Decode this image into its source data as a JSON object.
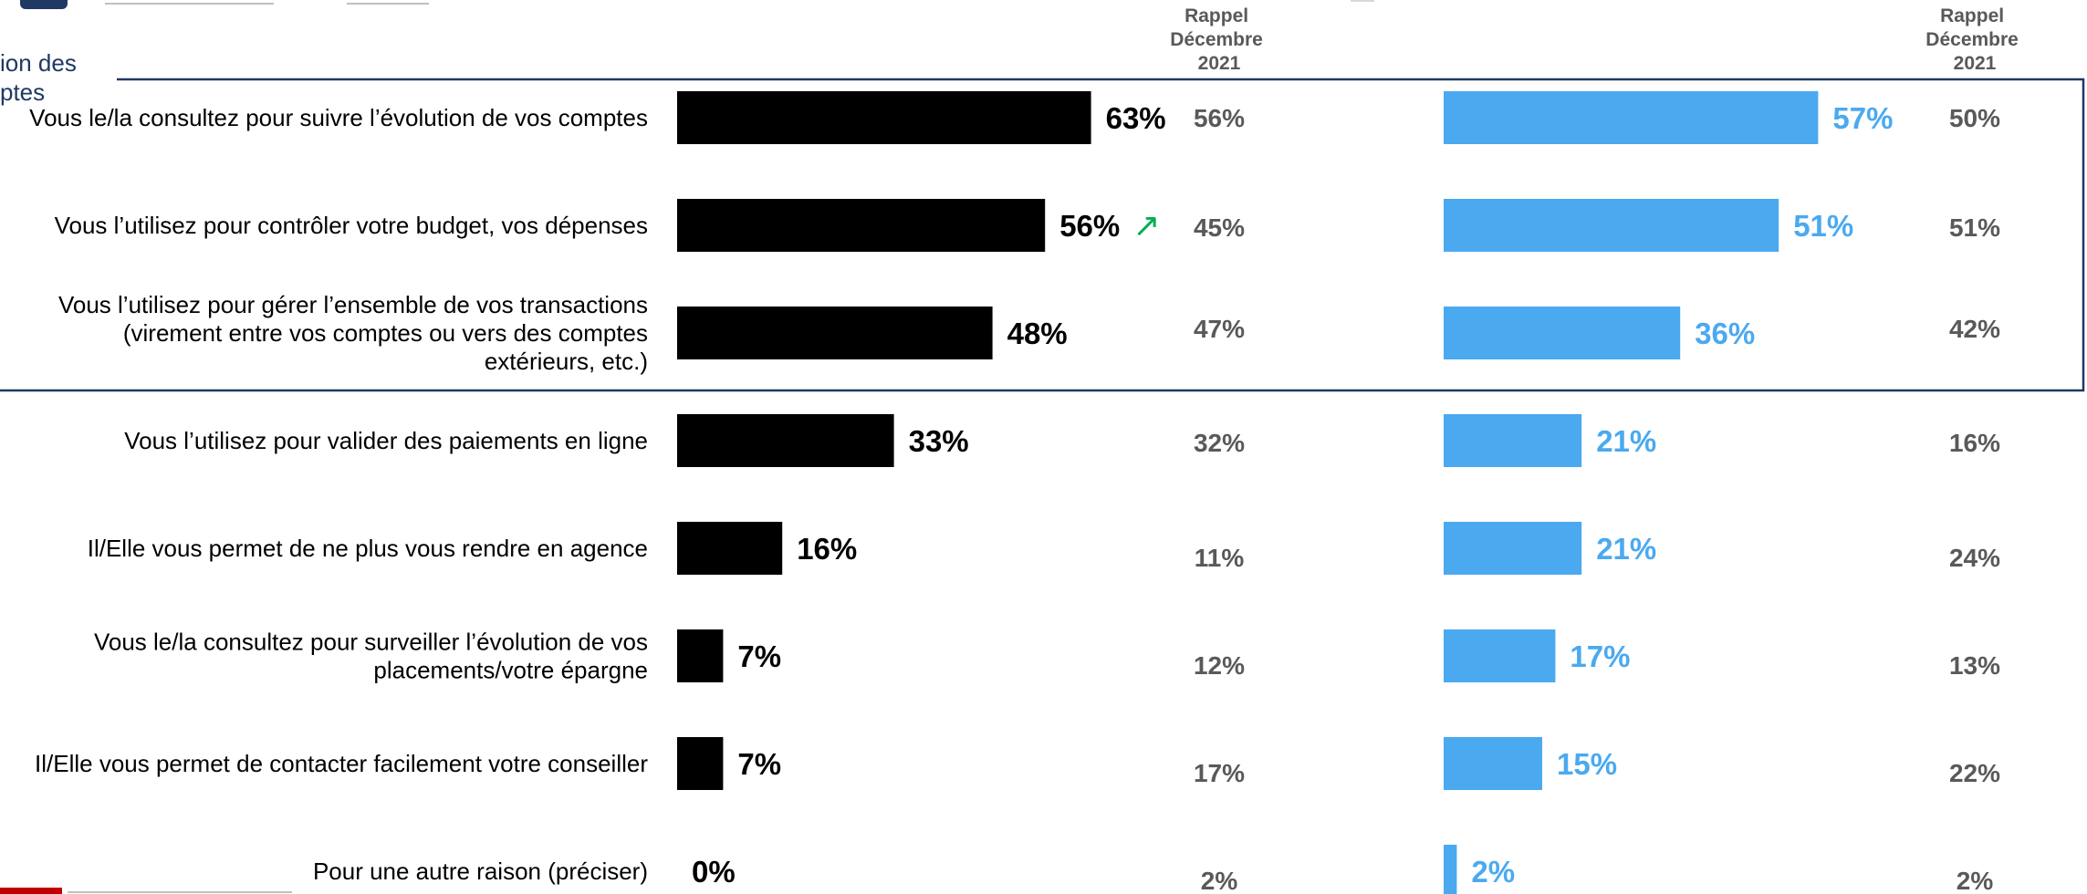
{
  "header": {
    "rappel_left": [
      "Rappel",
      "Décembre",
      "2021"
    ],
    "rappel_right": [
      "Rappel",
      "Décembre",
      "2021"
    ],
    "group_label": [
      "ion des",
      "ptes"
    ]
  },
  "colors": {
    "series_left": "#000000",
    "series_right": "#4BA9F0",
    "rappel_text": "#595959",
    "highlight_box": "#1F3864",
    "up_arrow": "#00B050"
  },
  "chart_data": {
    "type": "bar",
    "orientation": "horizontal",
    "categories": [
      [
        "Vous le/la consultez pour suivre l’évolution de vos comptes"
      ],
      [
        "Vous l’utilisez pour contrôler votre budget, vos dépenses"
      ],
      [
        "Vous l’utilisez pour gérer l’ensemble de vos transactions",
        "(virement entre vos comptes ou vers des comptes",
        "extérieurs, etc.)"
      ],
      [
        "Vous l’utilisez pour valider des paiements en ligne"
      ],
      [
        "Il/Elle vous permet de ne plus vous rendre en agence"
      ],
      [
        "Vous le/la consultez pour surveiller l’évolution de vos",
        "placements/votre épargne"
      ],
      [
        "Il/Elle vous permet de contacter facilement votre conseiller"
      ],
      [
        "Pour une autre raison (préciser)"
      ]
    ],
    "series": [
      {
        "values": [
          63,
          56,
          48,
          33,
          16,
          7,
          7,
          0
        ],
        "labels": [
          "63%",
          "56%",
          "48%",
          "33%",
          "16%",
          "7%",
          "7%",
          "0%"
        ],
        "rappel_labels": [
          "56%",
          "45%",
          "47%",
          "32%",
          "11%",
          "12%",
          "17%",
          "2%"
        ],
        "significant_up": [
          false,
          true,
          false,
          false,
          false,
          false,
          false,
          false
        ]
      },
      {
        "values": [
          57,
          51,
          36,
          21,
          21,
          17,
          15,
          2
        ],
        "labels": [
          "57%",
          "51%",
          "36%",
          "21%",
          "21%",
          "17%",
          "15%",
          "2%"
        ],
        "rappel_labels": [
          "50%",
          "51%",
          "42%",
          "16%",
          "24%",
          "13%",
          "22%",
          "2%"
        ]
      }
    ],
    "xlim": [
      0,
      100
    ],
    "highlighted_rows": [
      0,
      1,
      2
    ],
    "up_arrow_symbol": "↗"
  }
}
